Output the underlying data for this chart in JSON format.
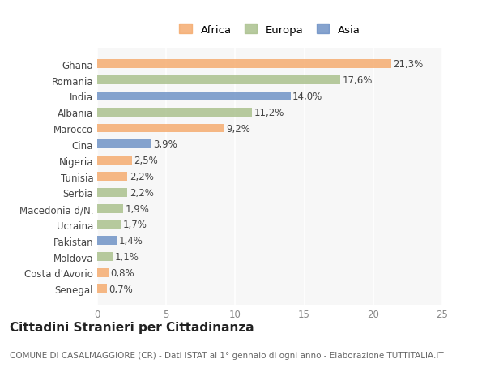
{
  "countries": [
    "Ghana",
    "Romania",
    "India",
    "Albania",
    "Marocco",
    "Cina",
    "Nigeria",
    "Tunisia",
    "Serbia",
    "Macedonia d/N.",
    "Ucraina",
    "Pakistan",
    "Moldova",
    "Costa d'Avorio",
    "Senegal"
  ],
  "values": [
    21.3,
    17.6,
    14.0,
    11.2,
    9.2,
    3.9,
    2.5,
    2.2,
    2.2,
    1.9,
    1.7,
    1.4,
    1.1,
    0.8,
    0.7
  ],
  "continents": [
    "Africa",
    "Europa",
    "Asia",
    "Europa",
    "Africa",
    "Asia",
    "Africa",
    "Africa",
    "Europa",
    "Europa",
    "Europa",
    "Asia",
    "Europa",
    "Africa",
    "Africa"
  ],
  "labels": [
    "21,3%",
    "17,6%",
    "14,0%",
    "11,2%",
    "9,2%",
    "3,9%",
    "2,5%",
    "2,2%",
    "2,2%",
    "1,9%",
    "1,7%",
    "1,4%",
    "1,1%",
    "0,8%",
    "0,7%"
  ],
  "colors": {
    "Africa": "#F5A96B",
    "Europa": "#A8BF8A",
    "Asia": "#6B8FC4"
  },
  "xlim": [
    0,
    25
  ],
  "xticks": [
    0,
    5,
    10,
    15,
    20,
    25
  ],
  "title": "Cittadini Stranieri per Cittadinanza",
  "subtitle": "COMUNE DI CASALMAGGIORE (CR) - Dati ISTAT al 1° gennaio di ogni anno - Elaborazione TUTTITALIA.IT",
  "legend_order": [
    "Africa",
    "Europa",
    "Asia"
  ],
  "background_color": "#ffffff",
  "plot_bg_color": "#f7f7f7",
  "bar_height": 0.55,
  "label_fontsize": 8.5,
  "tick_fontsize": 8.5,
  "title_fontsize": 11,
  "subtitle_fontsize": 7.5
}
